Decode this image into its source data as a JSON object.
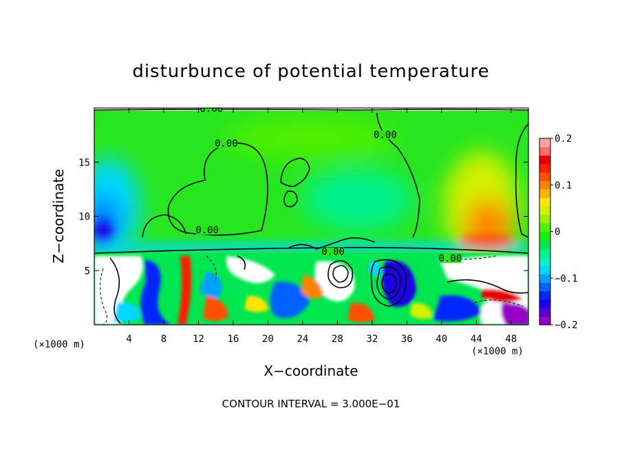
{
  "chart_data": {
    "type": "heatmap",
    "title": "disturbunce of potential temperature",
    "xlabel": "X−coordinate",
    "ylabel": "Z−coordinate",
    "x_unit_left": "(×1000 m)",
    "x_unit_right": "(×1000 m)",
    "footnote": "CONTOUR INTERVAL = 3.000E−01",
    "xlim": [
      0,
      50
    ],
    "ylim": [
      0,
      20
    ],
    "x_ticks": [
      4,
      8,
      12,
      16,
      20,
      24,
      28,
      32,
      36,
      40,
      44,
      48
    ],
    "x_tick_labels": [
      "4",
      "8",
      "12",
      "16",
      "20",
      "24",
      "28",
      "32",
      "36",
      "40",
      "44",
      "48"
    ],
    "y_ticks": [
      5,
      10,
      15
    ],
    "y_tick_labels": [
      "5",
      "10",
      "15"
    ],
    "colorbar": {
      "range": [
        -0.2,
        0.2
      ],
      "ticks": [
        -0.2,
        -0.1,
        0,
        0.1,
        0.2
      ],
      "tick_labels": [
        "−0.2",
        "−0.1",
        "0",
        "0.1",
        "0.2"
      ],
      "colors": [
        "#9600c8",
        "#5a00d2",
        "#1e00e6",
        "#0028ff",
        "#0064ff",
        "#00a0ff",
        "#00d7ff",
        "#00f0c8",
        "#00f08c",
        "#00e650",
        "#14f014",
        "#50f000",
        "#96f000",
        "#d2f000",
        "#ffe600",
        "#ffb400",
        "#ff8200",
        "#ff5000",
        "#ff1e00",
        "#e60000",
        "#ff6e6e",
        "#ffa0a0"
      ]
    },
    "contour_labels": [
      {
        "text": "0.00",
        "x": 13.5,
        "z": 19.7
      },
      {
        "text": "0.00",
        "x": 15.2,
        "z": 16.5
      },
      {
        "text": "0.00",
        "x": 13.0,
        "z": 8.5
      },
      {
        "text": "0.00",
        "x": 33.5,
        "z": 17.3
      },
      {
        "text": "0.00",
        "x": 27.5,
        "z": 6.5
      },
      {
        "text": "0.00",
        "x": 41.0,
        "z": 5.9
      }
    ]
  }
}
